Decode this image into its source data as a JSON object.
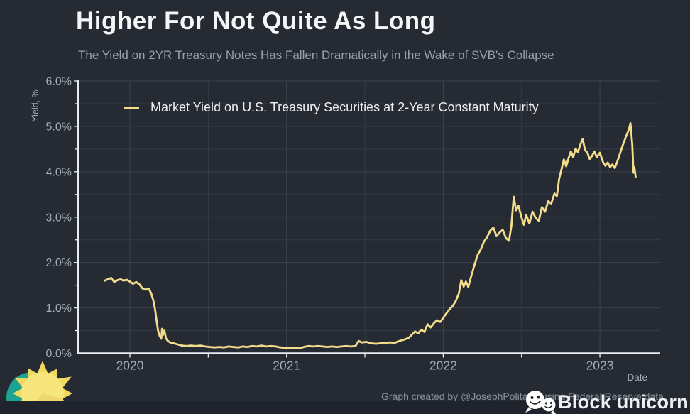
{
  "header": {
    "title": "Higher For Not Quite As Long",
    "subtitle": "The Yield on 2YR Treasury Notes Has Fallen Dramatically in the Wake of SVB's Collapse"
  },
  "footer": {
    "attribution": "Graph created by @JosephPolitano using Federal Reserve data",
    "brand": "Block unicorn",
    "brand_icon": "wechat-icon",
    "logo": "sun-logo"
  },
  "colors": {
    "background": "#262b33",
    "footer_bar": "#1f232b",
    "line": "#f3dd8c",
    "title": "#f4f5f7",
    "subtitle": "#9aa1ab",
    "tick_label": "#a6adb6",
    "axis": "#e9ecef",
    "grid": "#343b44",
    "grid_major": "#3c434d",
    "attribution": "#8a919b",
    "brand": "#eef1f4",
    "sun_body": "#f6e57d",
    "sun_ray": "#f0d95e",
    "sun_shade": "#e9d268",
    "sun_teal": "#1aa392"
  },
  "chart_data": {
    "type": "line",
    "xlabel": "Date",
    "ylabel": "Yield, %",
    "xlim": [
      2019.669,
      2023.385
    ],
    "ylim": [
      0,
      6
    ],
    "xticks": [
      2020,
      2021,
      2022,
      2023
    ],
    "xtick_labels": [
      "2020",
      "2021",
      "2022",
      "2023"
    ],
    "yticks": [
      0,
      1,
      2,
      3,
      4,
      5,
      6
    ],
    "ytick_labels": [
      "0.0%",
      "1.0%",
      "2.0%",
      "3.0%",
      "4.0%",
      "5.0%",
      "6.0%"
    ],
    "grid_x": [
      2020,
      2020.5,
      2021,
      2021.5,
      2022,
      2022.5,
      2023
    ],
    "grid_y": [
      0.5,
      1,
      1.5,
      2,
      2.5,
      3,
      3.5,
      4,
      4.5,
      5,
      5.5,
      6
    ],
    "grid": true,
    "legend_position": "top-left",
    "legend": [
      {
        "label": "Market Yield on U.S. Treasury Securities at 2-Year Constant Maturity",
        "color": "#f3dd8c"
      }
    ],
    "series": [
      {
        "name": "Market Yield on U.S. Treasury Securities at 2-Year Constant Maturity",
        "color": "#f3dd8c",
        "points": [
          [
            2019.84,
            1.6
          ],
          [
            2019.86,
            1.63
          ],
          [
            2019.88,
            1.66
          ],
          [
            2019.9,
            1.57
          ],
          [
            2019.92,
            1.61
          ],
          [
            2019.94,
            1.63
          ],
          [
            2019.96,
            1.6
          ],
          [
            2019.98,
            1.62
          ],
          [
            2020.0,
            1.58
          ],
          [
            2020.02,
            1.53
          ],
          [
            2020.04,
            1.57
          ],
          [
            2020.06,
            1.52
          ],
          [
            2020.08,
            1.43
          ],
          [
            2020.1,
            1.4
          ],
          [
            2020.12,
            1.42
          ],
          [
            2020.135,
            1.33
          ],
          [
            2020.15,
            1.16
          ],
          [
            2020.16,
            0.98
          ],
          [
            2020.17,
            0.72
          ],
          [
            2020.18,
            0.49
          ],
          [
            2020.19,
            0.38
          ],
          [
            2020.2,
            0.32
          ],
          [
            2020.205,
            0.54
          ],
          [
            2020.21,
            0.4
          ],
          [
            2020.22,
            0.5
          ],
          [
            2020.23,
            0.33
          ],
          [
            2020.24,
            0.28
          ],
          [
            2020.26,
            0.23
          ],
          [
            2020.28,
            0.22
          ],
          [
            2020.3,
            0.2
          ],
          [
            2020.33,
            0.17
          ],
          [
            2020.36,
            0.16
          ],
          [
            2020.39,
            0.17
          ],
          [
            2020.42,
            0.16
          ],
          [
            2020.45,
            0.17
          ],
          [
            2020.48,
            0.15
          ],
          [
            2020.51,
            0.14
          ],
          [
            2020.54,
            0.13
          ],
          [
            2020.57,
            0.14
          ],
          [
            2020.6,
            0.13
          ],
          [
            2020.63,
            0.15
          ],
          [
            2020.66,
            0.14
          ],
          [
            2020.69,
            0.13
          ],
          [
            2020.72,
            0.15
          ],
          [
            2020.75,
            0.14
          ],
          [
            2020.78,
            0.16
          ],
          [
            2020.81,
            0.15
          ],
          [
            2020.84,
            0.17
          ],
          [
            2020.87,
            0.15
          ],
          [
            2020.9,
            0.16
          ],
          [
            2020.93,
            0.15
          ],
          [
            2020.96,
            0.13
          ],
          [
            2020.99,
            0.12
          ],
          [
            2021.02,
            0.11
          ],
          [
            2021.05,
            0.12
          ],
          [
            2021.08,
            0.11
          ],
          [
            2021.11,
            0.14
          ],
          [
            2021.14,
            0.16
          ],
          [
            2021.17,
            0.15
          ],
          [
            2021.2,
            0.16
          ],
          [
            2021.23,
            0.15
          ],
          [
            2021.26,
            0.14
          ],
          [
            2021.29,
            0.15
          ],
          [
            2021.32,
            0.14
          ],
          [
            2021.35,
            0.15
          ],
          [
            2021.38,
            0.16
          ],
          [
            2021.41,
            0.15
          ],
          [
            2021.44,
            0.16
          ],
          [
            2021.46,
            0.27
          ],
          [
            2021.48,
            0.24
          ],
          [
            2021.51,
            0.25
          ],
          [
            2021.54,
            0.22
          ],
          [
            2021.57,
            0.21
          ],
          [
            2021.6,
            0.22
          ],
          [
            2021.63,
            0.23
          ],
          [
            2021.66,
            0.24
          ],
          [
            2021.69,
            0.23
          ],
          [
            2021.72,
            0.27
          ],
          [
            2021.75,
            0.3
          ],
          [
            2021.78,
            0.34
          ],
          [
            2021.8,
            0.41
          ],
          [
            2021.82,
            0.48
          ],
          [
            2021.84,
            0.44
          ],
          [
            2021.86,
            0.52
          ],
          [
            2021.88,
            0.47
          ],
          [
            2021.9,
            0.64
          ],
          [
            2021.92,
            0.57
          ],
          [
            2021.94,
            0.66
          ],
          [
            2021.96,
            0.73
          ],
          [
            2021.98,
            0.69
          ],
          [
            2022.0,
            0.78
          ],
          [
            2022.02,
            0.88
          ],
          [
            2022.04,
            0.97
          ],
          [
            2022.06,
            1.04
          ],
          [
            2022.08,
            1.15
          ],
          [
            2022.1,
            1.32
          ],
          [
            2022.115,
            1.61
          ],
          [
            2022.13,
            1.47
          ],
          [
            2022.145,
            1.58
          ],
          [
            2022.16,
            1.46
          ],
          [
            2022.18,
            1.72
          ],
          [
            2022.2,
            1.95
          ],
          [
            2022.22,
            2.17
          ],
          [
            2022.24,
            2.29
          ],
          [
            2022.26,
            2.46
          ],
          [
            2022.28,
            2.56
          ],
          [
            2022.3,
            2.7
          ],
          [
            2022.32,
            2.77
          ],
          [
            2022.34,
            2.58
          ],
          [
            2022.36,
            2.66
          ],
          [
            2022.38,
            2.72
          ],
          [
            2022.4,
            2.54
          ],
          [
            2022.42,
            2.48
          ],
          [
            2022.435,
            2.81
          ],
          [
            2022.45,
            3.45
          ],
          [
            2022.465,
            3.15
          ],
          [
            2022.48,
            3.25
          ],
          [
            2022.5,
            2.99
          ],
          [
            2022.515,
            2.83
          ],
          [
            2022.53,
            3.05
          ],
          [
            2022.55,
            2.86
          ],
          [
            2022.57,
            3.12
          ],
          [
            2022.59,
            2.98
          ],
          [
            2022.61,
            2.92
          ],
          [
            2022.63,
            3.22
          ],
          [
            2022.65,
            3.12
          ],
          [
            2022.67,
            3.35
          ],
          [
            2022.69,
            3.3
          ],
          [
            2022.71,
            3.52
          ],
          [
            2022.725,
            3.46
          ],
          [
            2022.74,
            3.85
          ],
          [
            2022.755,
            4.05
          ],
          [
            2022.77,
            4.27
          ],
          [
            2022.785,
            4.12
          ],
          [
            2022.8,
            4.3
          ],
          [
            2022.815,
            4.45
          ],
          [
            2022.83,
            4.32
          ],
          [
            2022.845,
            4.51
          ],
          [
            2022.86,
            4.43
          ],
          [
            2022.875,
            4.6
          ],
          [
            2022.89,
            4.72
          ],
          [
            2022.905,
            4.48
          ],
          [
            2022.92,
            4.42
          ],
          [
            2022.935,
            4.28
          ],
          [
            2022.95,
            4.35
          ],
          [
            2022.965,
            4.45
          ],
          [
            2022.98,
            4.32
          ],
          [
            2023.0,
            4.42
          ],
          [
            2023.02,
            4.21
          ],
          [
            2023.035,
            4.13
          ],
          [
            2023.05,
            4.2
          ],
          [
            2023.065,
            4.1
          ],
          [
            2023.08,
            4.16
          ],
          [
            2023.095,
            4.08
          ],
          [
            2023.11,
            4.21
          ],
          [
            2023.13,
            4.42
          ],
          [
            2023.15,
            4.62
          ],
          [
            2023.17,
            4.81
          ],
          [
            2023.185,
            4.93
          ],
          [
            2023.195,
            5.07
          ],
          [
            2023.2,
            4.87
          ],
          [
            2023.207,
            4.59
          ],
          [
            2023.214,
            3.98
          ],
          [
            2023.22,
            4.1
          ],
          [
            2023.228,
            3.89
          ]
        ]
      }
    ]
  }
}
